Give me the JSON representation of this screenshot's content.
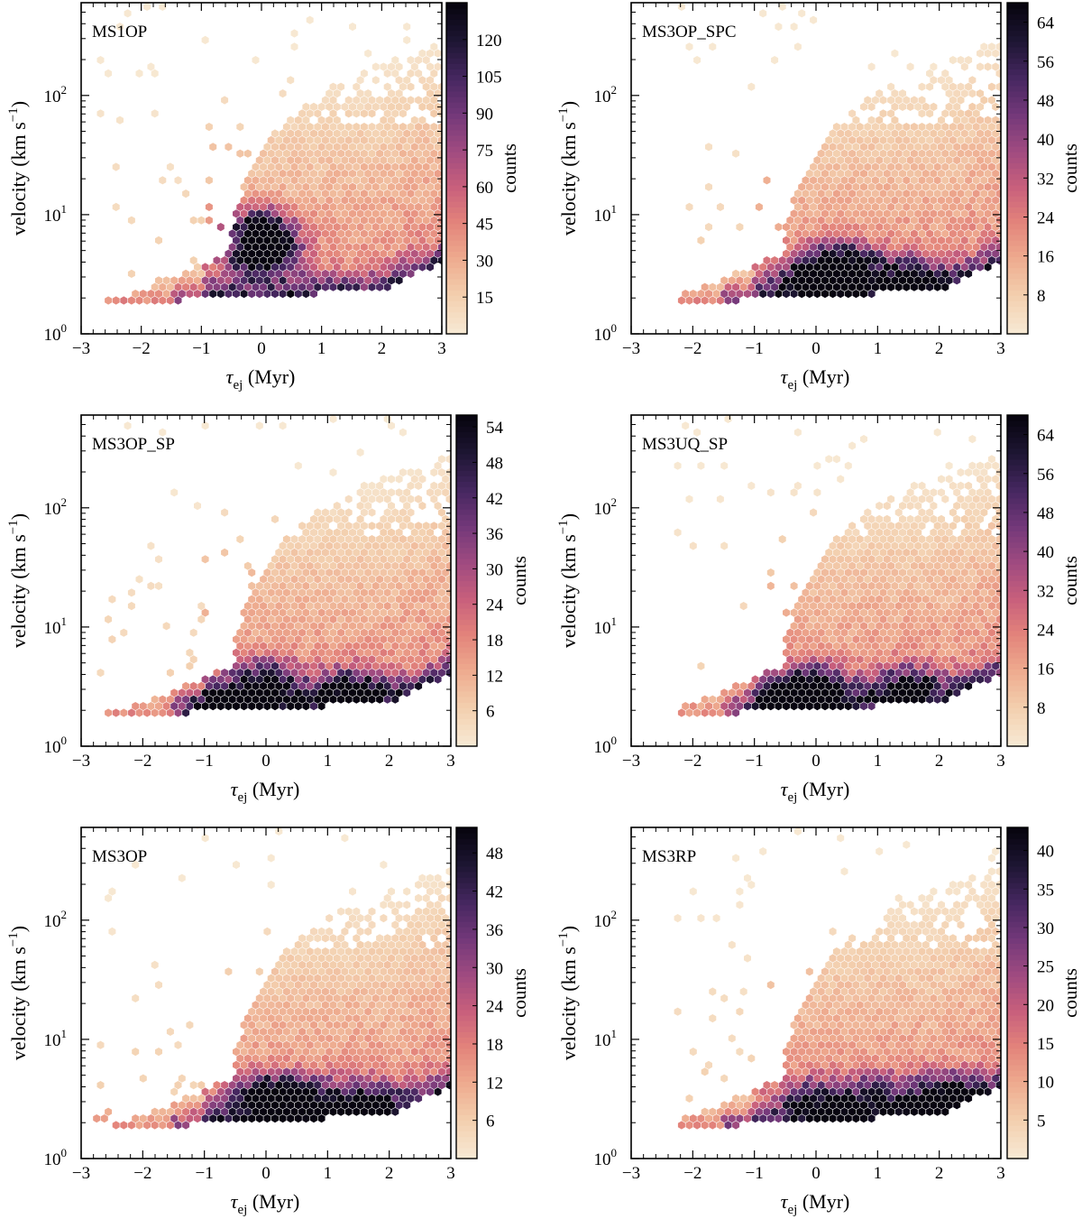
{
  "figure": {
    "description_hidden": false
  },
  "colors": {
    "cmap": [
      "#f7e8d2",
      "#f3cfae",
      "#eeab8f",
      "#e3847b",
      "#c85f7c",
      "#9f4b80",
      "#73387a",
      "#462760",
      "#1e1634",
      "#080510"
    ]
  },
  "axis_text": {
    "xlabel_main": "τ",
    "xlabel_sub": "ej",
    "xlabel_unit": " (Myr)",
    "ylabel_main": "velocity (km s",
    "ylabel_sup": "−1",
    "ylabel_close": ")",
    "cbar_label": "counts"
  },
  "chart_data": [
    {
      "type": "heatmap",
      "title": "MS1OP",
      "xlim": [
        -3,
        3
      ],
      "ylim": [
        1,
        600
      ],
      "yscale": "log",
      "xticks": [
        "−3",
        "−2",
        "−1",
        "0",
        "1",
        "2",
        "3"
      ],
      "yticks": [
        {
          "base": "10",
          "exp": "0"
        },
        {
          "base": "10",
          "exp": "1"
        },
        {
          "base": "10",
          "exp": "2"
        }
      ],
      "cbar_ticks": [
        15,
        30,
        45,
        60,
        75,
        90,
        105,
        120
      ],
      "cbar_max": 135,
      "peaks": [
        {
          "x": 0.0,
          "v": 7.0,
          "w": 1.0
        },
        {
          "x": 0.0,
          "v": 4.5,
          "w": 0.8
        }
      ],
      "floor_max": 2.6,
      "spread": 1.6
    },
    {
      "type": "heatmap",
      "title": "MS3OP_SPC",
      "xlim": [
        -3,
        3
      ],
      "ylim": [
        1,
        600
      ],
      "yscale": "log",
      "xticks": [
        "−3",
        "−2",
        "−1",
        "0",
        "1",
        "2",
        "3"
      ],
      "yticks": [
        {
          "base": "10",
          "exp": "0"
        },
        {
          "base": "10",
          "exp": "1"
        },
        {
          "base": "10",
          "exp": "2"
        }
      ],
      "cbar_ticks": [
        8,
        16,
        24,
        32,
        40,
        48,
        56,
        64
      ],
      "cbar_max": 68,
      "peaks": [
        {
          "x": 0.0,
          "v": 3.0,
          "w": 1.0
        },
        {
          "x": 0.5,
          "v": 3.6,
          "w": 0.9
        },
        {
          "x": 1.5,
          "v": 2.8,
          "w": 0.8
        }
      ],
      "floor_max": 2.8,
      "spread": 1.4
    },
    {
      "type": "heatmap",
      "title": "MS3OP_SP",
      "xlim": [
        -3,
        3
      ],
      "ylim": [
        1,
        600
      ],
      "yscale": "log",
      "xticks": [
        "−3",
        "−2",
        "−1",
        "0",
        "1",
        "2",
        "3"
      ],
      "yticks": [
        {
          "base": "10",
          "exp": "0"
        },
        {
          "base": "10",
          "exp": "1"
        },
        {
          "base": "10",
          "exp": "2"
        }
      ],
      "cbar_ticks": [
        6,
        12,
        18,
        24,
        30,
        36,
        42,
        48,
        54
      ],
      "cbar_max": 56,
      "peaks": [
        {
          "x": 0.0,
          "v": 3.2,
          "w": 1.0
        },
        {
          "x": 1.4,
          "v": 2.8,
          "w": 0.9
        },
        {
          "x": -0.8,
          "v": 2.2,
          "w": 0.7
        }
      ],
      "floor_max": 2.6,
      "spread": 1.3
    },
    {
      "type": "heatmap",
      "title": "MS3UQ_SP",
      "xlim": [
        -3,
        3
      ],
      "ylim": [
        1,
        600
      ],
      "yscale": "log",
      "xticks": [
        "−3",
        "−2",
        "−1",
        "0",
        "1",
        "2",
        "3"
      ],
      "yticks": [
        {
          "base": "10",
          "exp": "0"
        },
        {
          "base": "10",
          "exp": "1"
        },
        {
          "base": "10",
          "exp": "2"
        }
      ],
      "cbar_ticks": [
        8,
        16,
        24,
        32,
        40,
        48,
        56,
        64
      ],
      "cbar_max": 68,
      "peaks": [
        {
          "x": 0.0,
          "v": 3.0,
          "w": 1.0
        },
        {
          "x": 1.5,
          "v": 3.0,
          "w": 0.8
        },
        {
          "x": -0.6,
          "v": 2.4,
          "w": 0.8
        }
      ],
      "floor_max": 2.7,
      "spread": 1.4
    },
    {
      "type": "heatmap",
      "title": "MS3OP",
      "xlim": [
        -3,
        3
      ],
      "ylim": [
        1,
        600
      ],
      "yscale": "log",
      "xticks": [
        "−3",
        "−2",
        "−1",
        "0",
        "1",
        "2",
        "3"
      ],
      "yticks": [
        {
          "base": "10",
          "exp": "0"
        },
        {
          "base": "10",
          "exp": "1"
        },
        {
          "base": "10",
          "exp": "2"
        }
      ],
      "cbar_ticks": [
        6,
        12,
        18,
        24,
        30,
        36,
        42,
        48
      ],
      "cbar_max": 52,
      "peaks": [
        {
          "x": 0.0,
          "v": 3.2,
          "w": 1.0
        },
        {
          "x": 1.6,
          "v": 2.8,
          "w": 0.9
        },
        {
          "x": 0.7,
          "v": 3.0,
          "w": 0.7
        }
      ],
      "floor_max": 2.5,
      "spread": 1.4
    },
    {
      "type": "heatmap",
      "title": "MS3RP",
      "xlim": [
        -3,
        3
      ],
      "ylim": [
        1,
        600
      ],
      "yscale": "log",
      "xticks": [
        "−3",
        "−2",
        "−1",
        "0",
        "1",
        "2",
        "3"
      ],
      "yticks": [
        {
          "base": "10",
          "exp": "0"
        },
        {
          "base": "10",
          "exp": "1"
        },
        {
          "base": "10",
          "exp": "2"
        }
      ],
      "cbar_ticks": [
        5,
        10,
        15,
        20,
        25,
        30,
        35,
        40
      ],
      "cbar_max": 43,
      "peaks": [
        {
          "x": 2.1,
          "v": 3.2,
          "w": 1.0
        },
        {
          "x": 0.0,
          "v": 3.0,
          "w": 0.7
        },
        {
          "x": 1.0,
          "v": 3.2,
          "w": 0.7
        }
      ],
      "floor_max": 2.5,
      "spread": 1.3
    }
  ]
}
